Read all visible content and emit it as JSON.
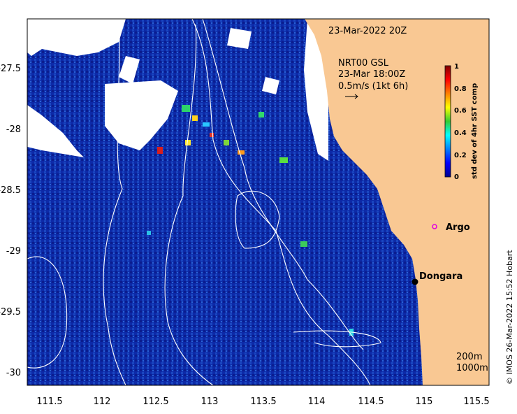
{
  "map": {
    "timestamp": "23-Mar-2022 20Z",
    "current_product": "NRT00 GSL",
    "current_time": "23-Mar 18:00Z",
    "scale_arrow_label": "0.5m/s (1kt 6h)",
    "x_ticks": [
      "111.5",
      "112",
      "112.5",
      "113",
      "113.5",
      "114",
      "114.5",
      "115",
      "115.5"
    ],
    "y_ticks": [
      "-27.5",
      "-28",
      "-28.5",
      "-29",
      "-29.5",
      "-30"
    ],
    "lon_range": [
      111.3,
      115.6
    ],
    "lat_range": [
      -30.1,
      -27.1
    ],
    "colorbar": {
      "title": "std dev of 4hr SST comp",
      "ticks": [
        "0",
        "0.2",
        "0.4",
        "0.6",
        "0.8",
        "1"
      ],
      "range": [
        0,
        1
      ]
    },
    "places": [
      {
        "name": "Argo",
        "lon": 115.04,
        "lat": -28.88,
        "marker": "circle-magenta"
      },
      {
        "name": "Dongara",
        "lon": 114.93,
        "lat": -29.25,
        "marker": "dot-black"
      }
    ],
    "bathymetry_legend": [
      "200m",
      "1000m"
    ],
    "credit": "© IMOS 26-Mar-2022 15:52 Hobart",
    "colors": {
      "land": "#f9c893",
      "ocean_low": "#0b1f9a",
      "ocean_mid": "#1e54c8",
      "no_data": "#ffffff",
      "contour": "#ffffff",
      "argo_marker": "#e000e0"
    }
  }
}
